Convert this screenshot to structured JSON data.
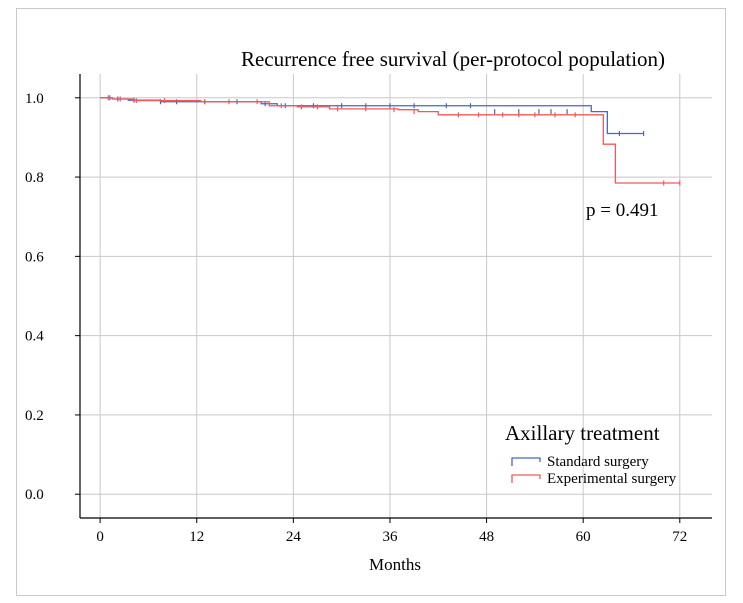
{
  "chart_data": {
    "type": "line",
    "title": "Recurrence free survival (per-protocol population)",
    "xlabel": "Months",
    "ylabel": "",
    "xlim": [
      -2.5,
      76
    ],
    "ylim": [
      -0.06,
      1.06
    ],
    "xticks": [
      0,
      12,
      24,
      36,
      48,
      60,
      72
    ],
    "xtick_labels": [
      "0",
      "12",
      "24",
      "36",
      "48",
      "60",
      "72"
    ],
    "yticks": [
      0.0,
      0.2,
      0.4,
      0.6,
      0.8,
      1.0
    ],
    "ytick_labels": [
      "0.0",
      "0.2",
      "0.4",
      "0.6",
      "0.8",
      "1.0"
    ],
    "grid": true,
    "step": true,
    "annotation": "p = 0.491",
    "legend": {
      "title": "Axillary treatment",
      "position": "bottom-right"
    },
    "series": [
      {
        "name": "Standard surgery",
        "color": "#4169c8",
        "x": [
          0,
          1.5,
          3.5,
          7.5,
          20,
          22,
          61,
          63,
          67.5
        ],
        "y": [
          1.0,
          0.997,
          0.994,
          0.99,
          0.985,
          0.98,
          0.965,
          0.91,
          0.91
        ],
        "censor_x": [
          1.2,
          2.2,
          4.2,
          7.5,
          9.5,
          13,
          17,
          20.5,
          23,
          26.5,
          30,
          33,
          36,
          39,
          43,
          46,
          49,
          52,
          54.5,
          56,
          58,
          64.5,
          67.5
        ],
        "censor_y": [
          1.0,
          0.997,
          0.994,
          0.99,
          0.99,
          0.99,
          0.99,
          0.985,
          0.98,
          0.98,
          0.98,
          0.98,
          0.98,
          0.98,
          0.98,
          0.98,
          0.965,
          0.965,
          0.965,
          0.965,
          0.965,
          0.91,
          0.91
        ]
      },
      {
        "name": "Experimental surgery",
        "color": "#f05a5a",
        "x": [
          0,
          1.5,
          4,
          12.5,
          21,
          24.5,
          28.5,
          37,
          39.5,
          42,
          61.5,
          62.5,
          64,
          72
        ],
        "y": [
          1.0,
          0.997,
          0.993,
          0.99,
          0.98,
          0.977,
          0.972,
          0.97,
          0.965,
          0.957,
          0.957,
          0.883,
          0.785,
          0.785
        ],
        "censor_x": [
          1,
          2.5,
          4.5,
          8,
          13,
          16,
          19.5,
          22.5,
          25,
          27,
          29.5,
          33,
          36.5,
          39,
          44.5,
          47,
          50,
          52,
          54,
          56.5,
          59,
          70,
          72
        ],
        "censor_y": [
          1.0,
          0.997,
          0.993,
          0.993,
          0.99,
          0.99,
          0.99,
          0.98,
          0.977,
          0.977,
          0.972,
          0.972,
          0.97,
          0.965,
          0.957,
          0.957,
          0.957,
          0.957,
          0.957,
          0.957,
          0.957,
          0.785,
          0.785
        ]
      }
    ]
  }
}
